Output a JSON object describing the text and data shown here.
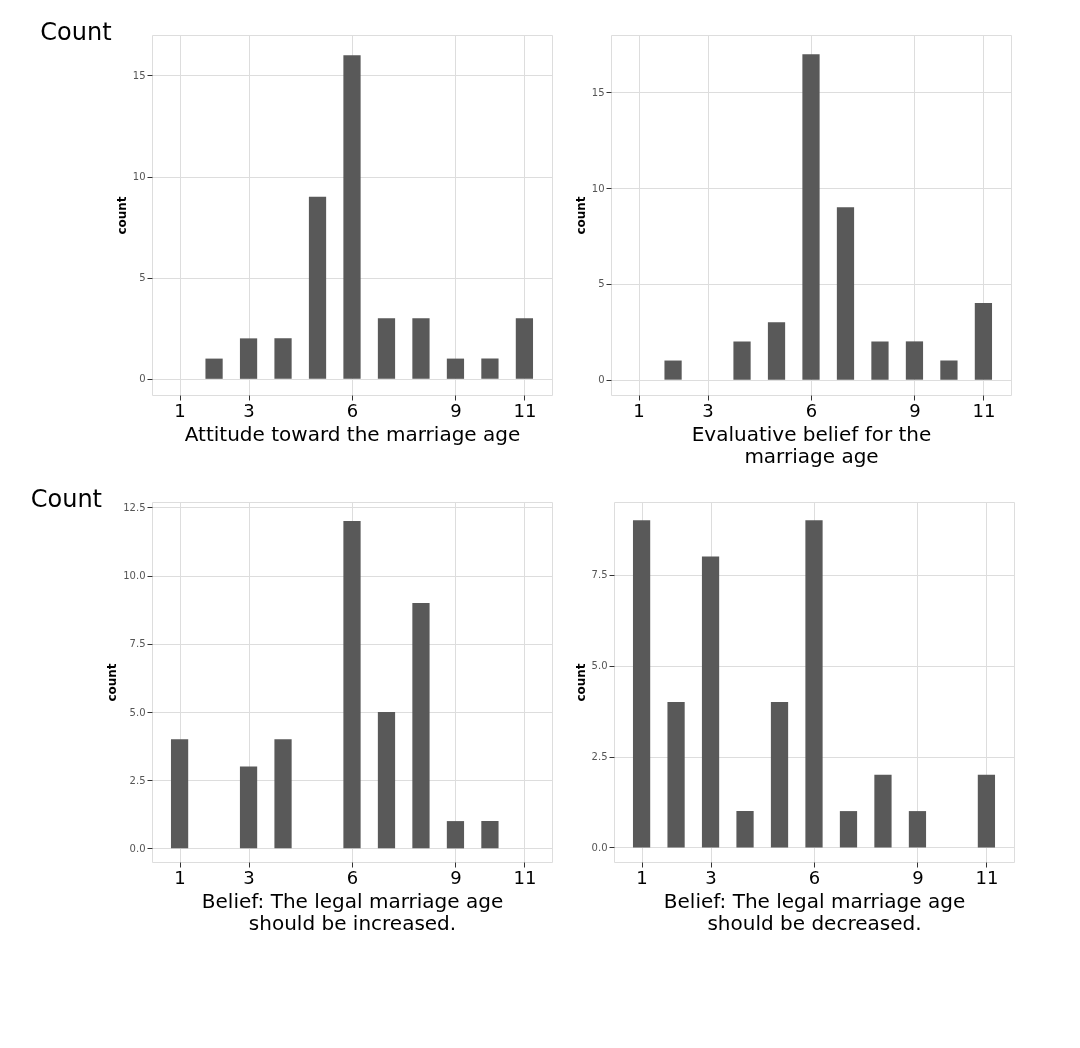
{
  "chart_data": [
    {
      "type": "bar",
      "annotations": [
        "Count"
      ],
      "xlabel": "Attitude toward the marriage age",
      "ylabel": "count",
      "x": [
        2,
        3,
        4,
        5,
        6,
        7,
        8,
        9,
        10,
        11
      ],
      "values": [
        1,
        2,
        2,
        9,
        16,
        3,
        3,
        1,
        1,
        3
      ],
      "color": "#595959",
      "xlim": [
        0.2,
        11.8
      ],
      "xticks": [
        1,
        3,
        6,
        9,
        11
      ],
      "ylim": [
        -0.8,
        17
      ],
      "yticks": [
        0,
        5,
        10,
        15
      ],
      "grid": true
    },
    {
      "type": "bar",
      "xlabel": "Evaluative belief for the marriage age",
      "ylabel": "count",
      "x": [
        2,
        4,
        5,
        6,
        7,
        8,
        9,
        10,
        11
      ],
      "values": [
        1,
        2,
        3,
        17,
        9,
        2,
        2,
        1,
        4
      ],
      "color": "#595959",
      "xlim": [
        0.2,
        11.8
      ],
      "xticks": [
        1,
        3,
        6,
        9,
        11
      ],
      "ylim": [
        -0.8,
        18
      ],
      "yticks": [
        0,
        5,
        10,
        15
      ],
      "grid": true
    },
    {
      "type": "bar",
      "annotations": [
        "Count"
      ],
      "xlabel": "Belief: The legal marriage age should be increased.",
      "ylabel": "count",
      "x": [
        1,
        3,
        4,
        6,
        7,
        8,
        9,
        10
      ],
      "values": [
        4,
        3,
        4,
        12,
        5,
        9,
        1,
        1
      ],
      "color": "#595959",
      "xlim": [
        0.2,
        11.8
      ],
      "xticks": [
        1,
        3,
        6,
        9,
        11
      ],
      "ylim": [
        -0.5,
        12.7
      ],
      "yticks": [
        {
          "value": 0,
          "label": "0.0"
        },
        {
          "value": 2.5,
          "label": "2.5"
        },
        {
          "value": 5,
          "label": "5.0"
        },
        {
          "value": 7.5,
          "label": "7.5"
        },
        {
          "value": 10,
          "label": "10.0"
        },
        {
          "value": 12.5,
          "label": "12.5"
        }
      ],
      "grid": true
    },
    {
      "type": "bar",
      "xlabel": "Belief: The legal marriage age should be decreased.",
      "ylabel": "count",
      "x": [
        1,
        2,
        3,
        4,
        5,
        6,
        7,
        8,
        9,
        11
      ],
      "values": [
        9,
        4,
        8,
        1,
        4,
        9,
        1,
        2,
        1,
        2
      ],
      "color": "#595959",
      "xlim": [
        0.2,
        11.8
      ],
      "xticks": [
        1,
        3,
        6,
        9,
        11
      ],
      "ylim": [
        -0.4,
        9.5
      ],
      "yticks": [
        {
          "value": 0,
          "label": "0.0"
        },
        {
          "value": 2.5,
          "label": "2.5"
        },
        {
          "value": 5,
          "label": "5.0"
        },
        {
          "value": 7.5,
          "label": "7.5"
        }
      ],
      "grid": true
    }
  ]
}
